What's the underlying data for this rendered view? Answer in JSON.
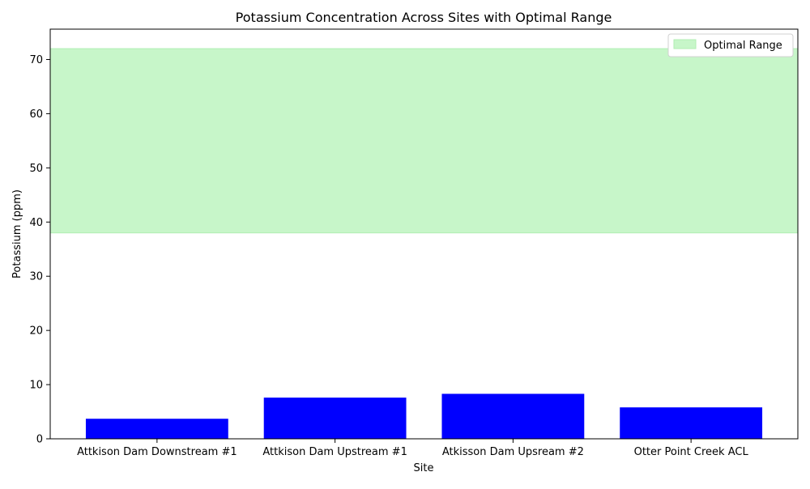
{
  "chart_data": {
    "type": "bar",
    "title": "Potassium Concentration Across Sites with Optimal Range",
    "xlabel": "Site",
    "ylabel": "Potassium (ppm)",
    "categories": [
      "Attkison Dam Downstream #1",
      "Attkison Dam Upstream #1",
      "Atkisson Dam Upsream #2",
      "Otter Point Creek ACL"
    ],
    "values": [
      3.7,
      7.6,
      8.3,
      5.8
    ],
    "ylim": [
      0,
      75.6
    ],
    "yticks": [
      0,
      10,
      20,
      30,
      40,
      50,
      60,
      70
    ],
    "optimal_range": {
      "label": "Optimal Range",
      "min": 38,
      "max": 72
    },
    "legend_position": "top-right",
    "grid": false,
    "colors": {
      "bars": "#0000ff",
      "optimal_fill": "#c7f6c9",
      "optimal_edge": "#b0eeb3",
      "axis": "#000000"
    }
  }
}
